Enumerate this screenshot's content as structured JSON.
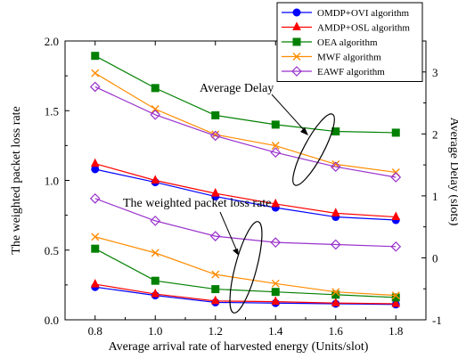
{
  "chart_data": {
    "type": "line",
    "xlabel": "Average arrival rate of  harvested energy (Units/slot)",
    "ylabel": "The weighted packet loss rate",
    "y2label": "Average Delay (slots)",
    "x": [
      0.8,
      1.0,
      1.2,
      1.4,
      1.6,
      1.8
    ],
    "xlim": [
      0.7,
      1.9
    ],
    "ylim": [
      0,
      2.0
    ],
    "y2lim": [
      -1,
      3.5
    ],
    "xticks": [
      "0.8",
      "1.0",
      "1.2",
      "1.4",
      "1.6",
      "1.8"
    ],
    "yticks": [
      "0.0",
      "0.5",
      "1.0",
      "1.5",
      "2.0"
    ],
    "y2ticks": [
      "-1",
      "0",
      "1",
      "2",
      "3"
    ],
    "legend_position": "top-right",
    "series": [
      {
        "name": "OMDP+OVI algorithm",
        "color": "#0000ff",
        "marker": "circle",
        "loss_rate": [
          0.235,
          0.175,
          0.125,
          0.12,
          0.115,
          0.11
        ],
        "delay": [
          1.43,
          1.22,
          0.99,
          0.81,
          0.66,
          0.61
        ]
      },
      {
        "name": "AMDP+OSL algorithm",
        "color": "#ff0000",
        "marker": "triangle",
        "loss_rate": [
          0.255,
          0.185,
          0.135,
          0.13,
          0.12,
          0.115
        ],
        "delay": [
          1.52,
          1.25,
          1.04,
          0.87,
          0.72,
          0.66
        ]
      },
      {
        "name": "OEA algorithm",
        "color": "#008000",
        "marker": "square",
        "loss_rate": [
          0.51,
          0.28,
          0.22,
          0.2,
          0.18,
          0.16
        ],
        "delay": [
          3.26,
          2.74,
          2.3,
          2.15,
          2.04,
          2.02
        ]
      },
      {
        "name": "MWF algorithm",
        "color": "#ff8c00",
        "marker": "x",
        "loss_rate": [
          0.595,
          0.48,
          0.325,
          0.26,
          0.2,
          0.175
        ],
        "delay": [
          2.98,
          2.4,
          1.99,
          1.81,
          1.51,
          1.38
        ]
      },
      {
        "name": "EAWF algorithm",
        "color": "#9932cc",
        "marker": "diamond",
        "loss_rate": [
          0.87,
          0.71,
          0.6,
          0.555,
          0.54,
          0.525
        ],
        "delay": [
          2.76,
          2.31,
          1.97,
          1.7,
          1.47,
          1.3
        ]
      }
    ],
    "annotations": [
      "Average Delay",
      "The weighted packet loss rate"
    ]
  }
}
